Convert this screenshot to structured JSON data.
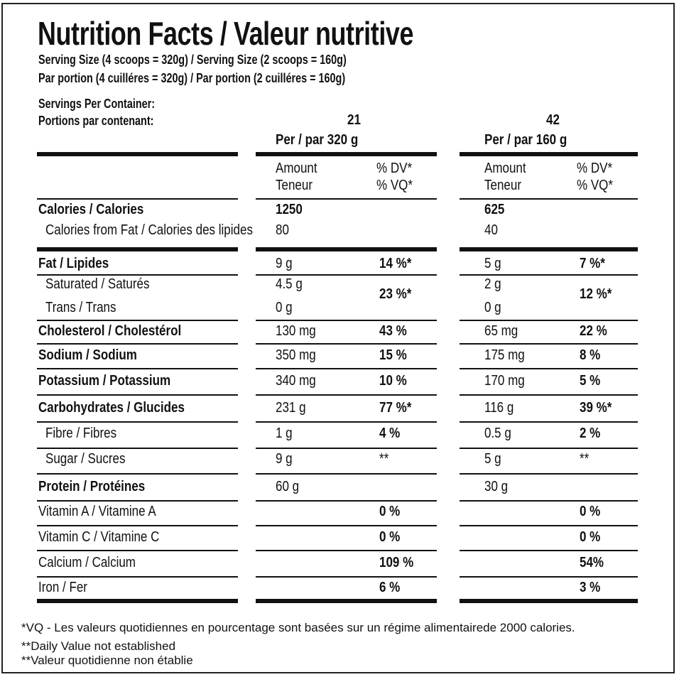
{
  "title": "Nutrition Facts / Valeur nutritive",
  "serving_lines": [
    "Serving Size (4 scoops = 320g) / Serving Size (2 scoops = 160g)",
    "Par portion (4 cuilléres = 320g) / Par portion (2 cuilléres = 160g)"
  ],
  "servings_label_en": "Servings Per Container:",
  "servings_label_fr": "Portions par contenant:",
  "columns": [
    {
      "servings": "21",
      "per": "Per / par  320 g",
      "amount": "Amount",
      "teneur": "Teneur",
      "dv": "% DV*",
      "vq": "% VQ*"
    },
    {
      "servings": "42",
      "per": "Per / par  160 g",
      "amount": "Amount",
      "teneur": "Teneur",
      "dv": "% DV*",
      "vq": "% VQ*"
    }
  ],
  "rows": [
    {
      "label": "Calories / Calories",
      "bold": true,
      "indent": false,
      "v": [
        "1250",
        "625"
      ],
      "dv": [
        "",
        ""
      ],
      "vbold": true
    },
    {
      "label": "Calories from Fat / Calories des lipides",
      "bold": false,
      "indent": true,
      "v": [
        "80",
        "40"
      ],
      "dv": [
        "",
        ""
      ]
    },
    {
      "label": "Fat / Lipides",
      "bold": true,
      "indent": false,
      "v": [
        "9 g",
        "5 g"
      ],
      "dv": [
        "14 %*",
        "7 %*"
      ]
    },
    {
      "label": "Saturated / Saturés",
      "bold": false,
      "indent": true,
      "v": [
        "4.5 g",
        "2 g"
      ],
      "dv": [
        "23 %*",
        "12 %*"
      ]
    },
    {
      "label": "Trans / Trans",
      "bold": false,
      "indent": true,
      "v": [
        "0 g",
        "0 g"
      ],
      "dv": [
        "",
        ""
      ]
    },
    {
      "label": "Cholesterol / Cholestérol",
      "bold": true,
      "indent": false,
      "v": [
        "130 mg",
        "65 mg"
      ],
      "dv": [
        "43 %",
        "22 %"
      ]
    },
    {
      "label": "Sodium / Sodium",
      "bold": true,
      "indent": false,
      "v": [
        "350 mg",
        "175 mg"
      ],
      "dv": [
        "15 %",
        "8 %"
      ]
    },
    {
      "label": "Potassium / Potassium",
      "bold": true,
      "indent": false,
      "v": [
        "340 mg",
        "170 mg"
      ],
      "dv": [
        "10 %",
        "5 %"
      ]
    },
    {
      "label": "Carbohydrates / Glucides",
      "bold": true,
      "indent": false,
      "v": [
        "231 g",
        "116 g"
      ],
      "dv": [
        "77 %*",
        "39 %*"
      ]
    },
    {
      "label": "Fibre / Fibres",
      "bold": false,
      "indent": true,
      "v": [
        "1 g",
        "0.5 g"
      ],
      "dv": [
        "4 %",
        "2 %"
      ]
    },
    {
      "label": "Sugar / Sucres",
      "bold": false,
      "indent": true,
      "v": [
        "9 g",
        "5 g"
      ],
      "dv": [
        "**",
        "**"
      ],
      "dvlight": true
    },
    {
      "label": "Protein / Protéines",
      "bold": true,
      "indent": false,
      "v": [
        "60 g",
        "30 g"
      ],
      "dv": [
        "",
        ""
      ]
    },
    {
      "label": "Vitamin A / Vitamine A",
      "bold": false,
      "indent": false,
      "v": [
        "",
        ""
      ],
      "dv": [
        "0 %",
        "0 %"
      ]
    },
    {
      "label": "Vitamin C / Vitamine C",
      "bold": false,
      "indent": false,
      "v": [
        "",
        ""
      ],
      "dv": [
        "0 %",
        "0 %"
      ]
    },
    {
      "label": "Calcium / Calcium",
      "bold": false,
      "indent": false,
      "v": [
        "",
        ""
      ],
      "dv": [
        "109 %",
        "54%"
      ]
    },
    {
      "label": "Iron / Fer",
      "bold": false,
      "indent": false,
      "v": [
        "",
        ""
      ],
      "dv": [
        "6 %",
        "3 %"
      ]
    }
  ],
  "footnotes": [
    "*VQ - Les valeurs quotidiennes en pourcentage sont basées sur un régime alimentairede 2000 calories.",
    "**Daily Value not established",
    "**Valeur quotidienne non établie"
  ]
}
